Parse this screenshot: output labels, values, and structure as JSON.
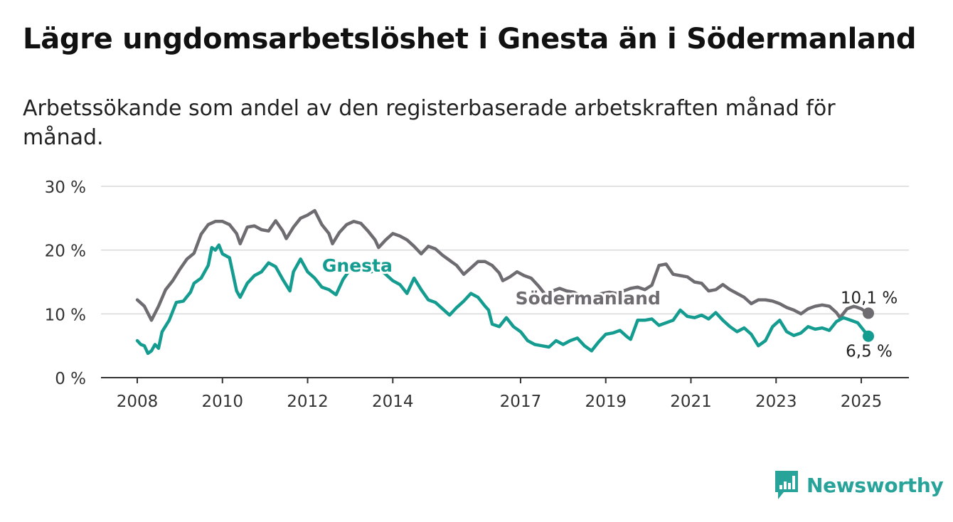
{
  "title": "Lägre ungdomsarbetslöshet i Gnesta än i Södermanland",
  "subtitle": "Arbetssökande som andel av den registerbaserade arbetskraften månad för månad.",
  "brand": {
    "name": "Newsworthy",
    "icon": "newsworthy-logo-icon",
    "color": "#27a39a"
  },
  "chart_data": {
    "type": "line",
    "title": "Lägre ungdomsarbetslöshet i Gnesta än i Södermanland",
    "subtitle": "Arbetssökande som andel av den registerbaserade arbetskraften månad för månad.",
    "xlabel": "",
    "ylabel": "",
    "xlim": [
      "2008-01",
      "2025-04"
    ],
    "ylim": [
      0,
      30
    ],
    "y_ticks": [
      0,
      10,
      20,
      30
    ],
    "y_tick_labels": [
      "0 %",
      "10 %",
      "20 %",
      "30 %"
    ],
    "x_ticks": [
      "2008",
      "2010",
      "2012",
      "2014",
      "2017",
      "2019",
      "2021",
      "2023",
      "2025"
    ],
    "grid": "horizontal",
    "legend": "direct labels on lines",
    "series": [
      {
        "name": "Södermanland",
        "color": "#6e6c70",
        "end_label": "10,1 %",
        "points": [
          [
            "2008-01",
            12.2
          ],
          [
            "2008-03",
            11.2
          ],
          [
            "2008-05",
            9.0
          ],
          [
            "2008-07",
            11.2
          ],
          [
            "2008-09",
            13.8
          ],
          [
            "2008-11",
            15.2
          ],
          [
            "2009-01",
            17.0
          ],
          [
            "2009-03",
            18.6
          ],
          [
            "2009-05",
            19.5
          ],
          [
            "2009-07",
            22.5
          ],
          [
            "2009-09",
            24.0
          ],
          [
            "2009-11",
            24.5
          ],
          [
            "2010-01",
            24.5
          ],
          [
            "2010-03",
            24.0
          ],
          [
            "2010-05",
            22.6
          ],
          [
            "2010-06",
            21.0
          ],
          [
            "2010-08",
            23.6
          ],
          [
            "2010-10",
            23.8
          ],
          [
            "2010-12",
            23.2
          ],
          [
            "2011-02",
            23.0
          ],
          [
            "2011-04",
            24.6
          ],
          [
            "2011-06",
            23.0
          ],
          [
            "2011-07",
            21.8
          ],
          [
            "2011-09",
            23.6
          ],
          [
            "2011-11",
            25.0
          ],
          [
            "2012-01",
            25.5
          ],
          [
            "2012-03",
            26.2
          ],
          [
            "2012-05",
            24.0
          ],
          [
            "2012-07",
            22.6
          ],
          [
            "2012-08",
            21.0
          ],
          [
            "2012-10",
            22.8
          ],
          [
            "2012-12",
            24.0
          ],
          [
            "2013-02",
            24.5
          ],
          [
            "2013-04",
            24.2
          ],
          [
            "2013-06",
            23.0
          ],
          [
            "2013-08",
            21.6
          ],
          [
            "2013-09",
            20.4
          ],
          [
            "2013-11",
            21.6
          ],
          [
            "2014-01",
            22.6
          ],
          [
            "2014-03",
            22.2
          ],
          [
            "2014-05",
            21.6
          ],
          [
            "2014-07",
            20.6
          ],
          [
            "2014-09",
            19.4
          ],
          [
            "2014-11",
            20.6
          ],
          [
            "2015-01",
            20.2
          ],
          [
            "2015-03",
            19.2
          ],
          [
            "2015-05",
            18.4
          ],
          [
            "2015-07",
            17.6
          ],
          [
            "2015-09",
            16.2
          ],
          [
            "2015-11",
            17.2
          ],
          [
            "2016-01",
            18.2
          ],
          [
            "2016-03",
            18.2
          ],
          [
            "2016-05",
            17.6
          ],
          [
            "2016-07",
            16.4
          ],
          [
            "2016-08",
            15.2
          ],
          [
            "2016-10",
            15.8
          ],
          [
            "2016-12",
            16.6
          ],
          [
            "2017-02",
            16.0
          ],
          [
            "2017-04",
            15.6
          ],
          [
            "2017-06",
            14.4
          ],
          [
            "2017-08",
            13.0
          ],
          [
            "2017-10",
            13.6
          ],
          [
            "2017-12",
            14.0
          ],
          [
            "2018-02",
            13.6
          ],
          [
            "2018-04",
            13.4
          ],
          [
            "2018-06",
            12.8
          ],
          [
            "2018-08",
            12.5
          ],
          [
            "2018-10",
            12.9
          ],
          [
            "2018-12",
            13.2
          ],
          [
            "2019-02",
            13.4
          ],
          [
            "2019-04",
            13.2
          ],
          [
            "2019-06",
            13.6
          ],
          [
            "2019-08",
            14.0
          ],
          [
            "2019-10",
            14.2
          ],
          [
            "2019-12",
            13.8
          ],
          [
            "2020-02",
            14.5
          ],
          [
            "2020-04",
            17.6
          ],
          [
            "2020-06",
            17.8
          ],
          [
            "2020-08",
            16.2
          ],
          [
            "2020-10",
            16.0
          ],
          [
            "2020-12",
            15.8
          ],
          [
            "2021-02",
            15.0
          ],
          [
            "2021-04",
            14.8
          ],
          [
            "2021-06",
            13.6
          ],
          [
            "2021-08",
            13.8
          ],
          [
            "2021-10",
            14.6
          ],
          [
            "2021-12",
            13.8
          ],
          [
            "2022-02",
            13.2
          ],
          [
            "2022-04",
            12.6
          ],
          [
            "2022-06",
            11.6
          ],
          [
            "2022-08",
            12.2
          ],
          [
            "2022-10",
            12.2
          ],
          [
            "2022-12",
            12.0
          ],
          [
            "2023-02",
            11.6
          ],
          [
            "2023-04",
            11.0
          ],
          [
            "2023-06",
            10.6
          ],
          [
            "2023-08",
            10.0
          ],
          [
            "2023-10",
            10.8
          ],
          [
            "2023-12",
            11.2
          ],
          [
            "2024-02",
            11.4
          ],
          [
            "2024-04",
            11.2
          ],
          [
            "2024-06",
            10.2
          ],
          [
            "2024-07",
            9.4
          ],
          [
            "2024-09",
            10.8
          ],
          [
            "2024-11",
            11.2
          ],
          [
            "2025-01",
            10.8
          ],
          [
            "2025-02",
            10.4
          ],
          [
            "2025-03",
            10.1
          ]
        ]
      },
      {
        "name": "Gnesta",
        "color": "#149c90",
        "end_label": "6,5 %",
        "points": [
          [
            "2008-01",
            5.8
          ],
          [
            "2008-02",
            5.2
          ],
          [
            "2008-03",
            5.0
          ],
          [
            "2008-04",
            3.8
          ],
          [
            "2008-05",
            4.2
          ],
          [
            "2008-06",
            5.2
          ],
          [
            "2008-07",
            4.6
          ],
          [
            "2008-08",
            7.2
          ],
          [
            "2008-10",
            9.0
          ],
          [
            "2008-12",
            11.8
          ],
          [
            "2009-02",
            12.0
          ],
          [
            "2009-04",
            13.4
          ],
          [
            "2009-05",
            14.8
          ],
          [
            "2009-07",
            15.6
          ],
          [
            "2009-09",
            17.6
          ],
          [
            "2009-10",
            20.4
          ],
          [
            "2009-11",
            20.0
          ],
          [
            "2009-12",
            20.8
          ],
          [
            "2010-01",
            19.4
          ],
          [
            "2010-03",
            18.8
          ],
          [
            "2010-05",
            13.6
          ],
          [
            "2010-06",
            12.6
          ],
          [
            "2010-08",
            14.8
          ],
          [
            "2010-10",
            16.0
          ],
          [
            "2010-12",
            16.6
          ],
          [
            "2011-02",
            18.0
          ],
          [
            "2011-04",
            17.4
          ],
          [
            "2011-06",
            15.4
          ],
          [
            "2011-08",
            13.6
          ],
          [
            "2011-09",
            16.6
          ],
          [
            "2011-11",
            18.6
          ],
          [
            "2012-01",
            16.6
          ],
          [
            "2012-03",
            15.6
          ],
          [
            "2012-05",
            14.2
          ],
          [
            "2012-07",
            13.8
          ],
          [
            "2012-09",
            13.0
          ],
          [
            "2012-11",
            15.4
          ],
          [
            "2013-01",
            17.0
          ],
          [
            "2013-03",
            17.6
          ],
          [
            "2013-05",
            17.2
          ],
          [
            "2013-07",
            16.6
          ],
          [
            "2013-09",
            17.2
          ],
          [
            "2013-11",
            16.2
          ],
          [
            "2014-01",
            15.2
          ],
          [
            "2014-03",
            14.6
          ],
          [
            "2014-05",
            13.2
          ],
          [
            "2014-07",
            15.6
          ],
          [
            "2014-09",
            13.8
          ],
          [
            "2014-11",
            12.2
          ],
          [
            "2015-01",
            11.8
          ],
          [
            "2015-03",
            10.8
          ],
          [
            "2015-05",
            9.8
          ],
          [
            "2015-07",
            11.0
          ],
          [
            "2015-09",
            12.0
          ],
          [
            "2015-11",
            13.2
          ],
          [
            "2016-01",
            12.6
          ],
          [
            "2016-03",
            11.2
          ],
          [
            "2016-04",
            10.6
          ],
          [
            "2016-05",
            8.4
          ],
          [
            "2016-07",
            8.0
          ],
          [
            "2016-09",
            9.4
          ],
          [
            "2016-11",
            8.0
          ],
          [
            "2017-01",
            7.2
          ],
          [
            "2017-03",
            5.8
          ],
          [
            "2017-05",
            5.2
          ],
          [
            "2017-07",
            5.0
          ],
          [
            "2017-09",
            4.8
          ],
          [
            "2017-11",
            5.8
          ],
          [
            "2018-01",
            5.2
          ],
          [
            "2018-03",
            5.8
          ],
          [
            "2018-05",
            6.2
          ],
          [
            "2018-07",
            5.0
          ],
          [
            "2018-09",
            4.2
          ],
          [
            "2018-11",
            5.6
          ],
          [
            "2019-01",
            6.8
          ],
          [
            "2019-03",
            7.0
          ],
          [
            "2019-05",
            7.4
          ],
          [
            "2019-07",
            6.4
          ],
          [
            "2019-08",
            6.0
          ],
          [
            "2019-10",
            9.0
          ],
          [
            "2019-12",
            9.0
          ],
          [
            "2020-02",
            9.2
          ],
          [
            "2020-04",
            8.2
          ],
          [
            "2020-06",
            8.6
          ],
          [
            "2020-08",
            9.0
          ],
          [
            "2020-10",
            10.6
          ],
          [
            "2020-12",
            9.6
          ],
          [
            "2021-02",
            9.4
          ],
          [
            "2021-04",
            9.8
          ],
          [
            "2021-06",
            9.2
          ],
          [
            "2021-08",
            10.2
          ],
          [
            "2021-10",
            9.0
          ],
          [
            "2021-12",
            8.0
          ],
          [
            "2022-02",
            7.2
          ],
          [
            "2022-04",
            7.8
          ],
          [
            "2022-06",
            6.8
          ],
          [
            "2022-08",
            5.0
          ],
          [
            "2022-10",
            5.8
          ],
          [
            "2022-12",
            8.0
          ],
          [
            "2023-02",
            9.0
          ],
          [
            "2023-04",
            7.2
          ],
          [
            "2023-06",
            6.6
          ],
          [
            "2023-08",
            7.0
          ],
          [
            "2023-10",
            8.0
          ],
          [
            "2023-12",
            7.6
          ],
          [
            "2024-02",
            7.8
          ],
          [
            "2024-04",
            7.4
          ],
          [
            "2024-06",
            8.8
          ],
          [
            "2024-08",
            9.4
          ],
          [
            "2024-10",
            9.0
          ],
          [
            "2024-12",
            8.6
          ],
          [
            "2025-02",
            7.2
          ],
          [
            "2025-03",
            6.5
          ]
        ]
      }
    ],
    "series_labels": [
      {
        "series": "Gnesta",
        "text": "Gnesta",
        "anchor_date": "2013-03",
        "anchor_value": 17.6
      },
      {
        "series": "Södermanland",
        "text": "Södermanland",
        "anchor_date": "2018-08",
        "anchor_value": 12.5
      }
    ]
  }
}
